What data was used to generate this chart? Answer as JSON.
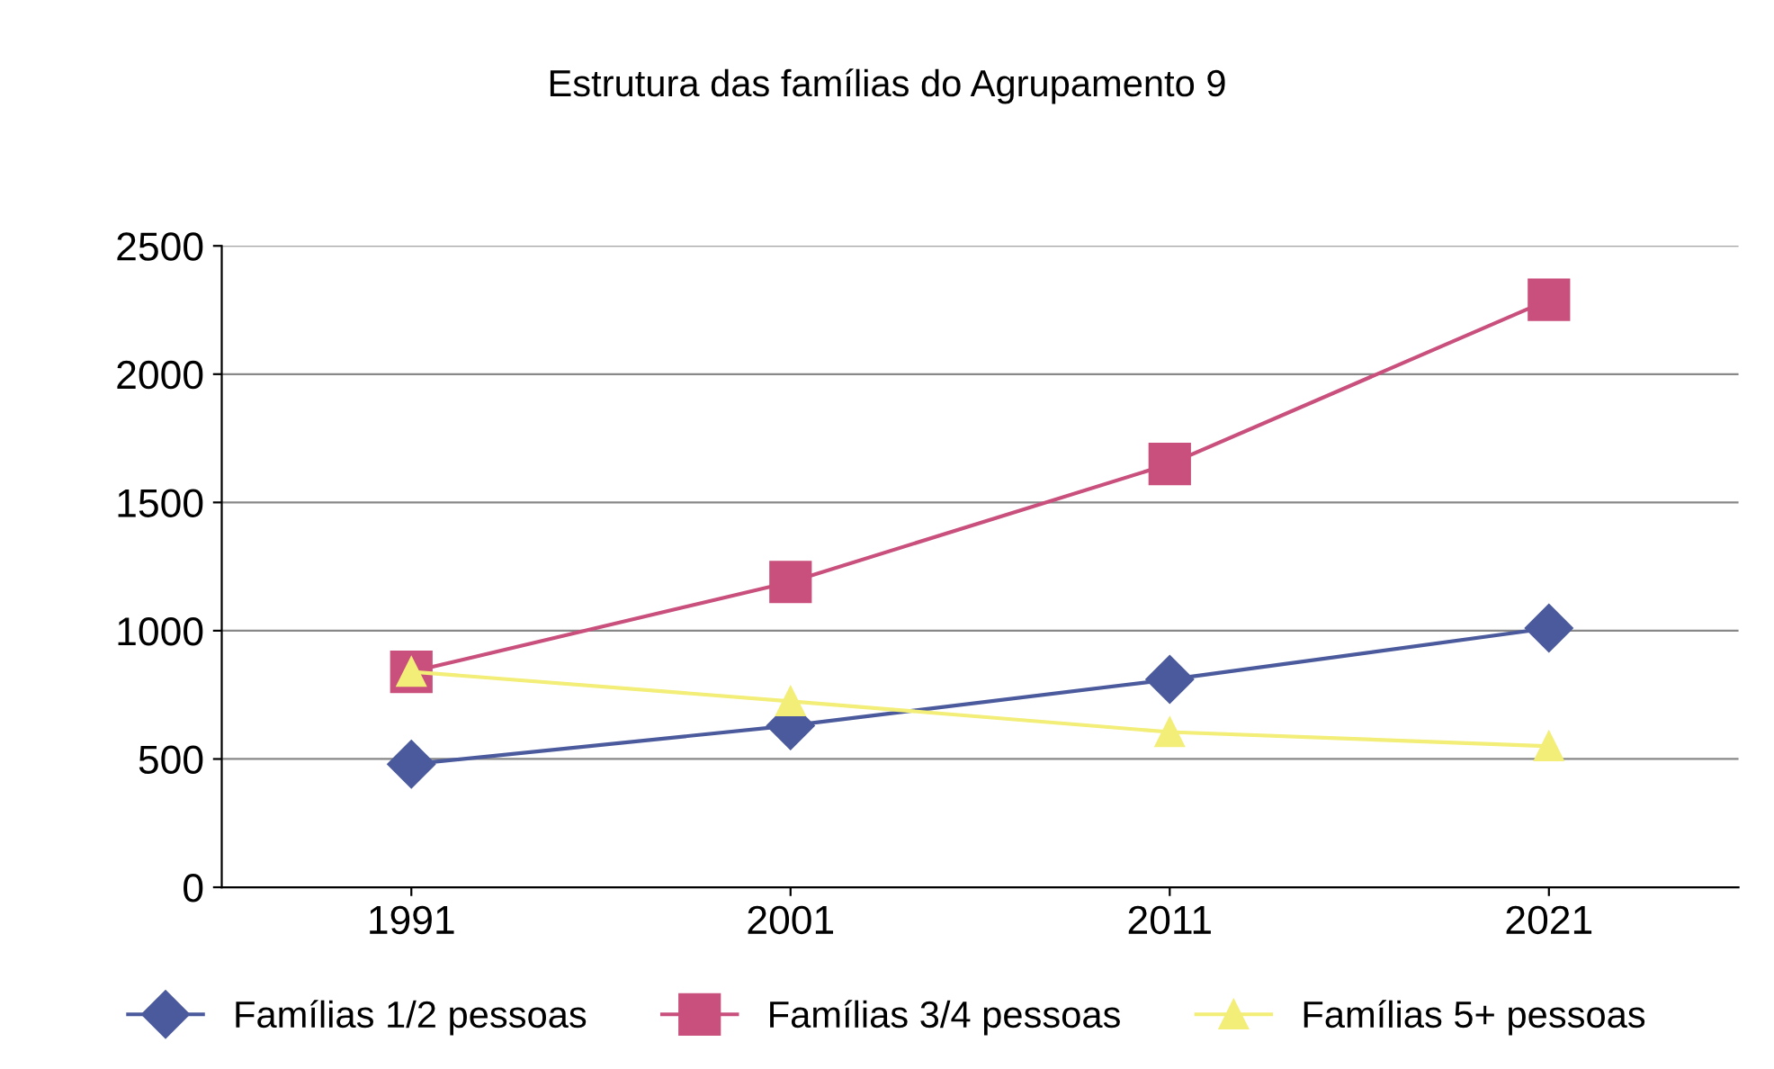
{
  "chart_data": {
    "type": "line",
    "title": "Estrutura das famílias do Agrupamento 9",
    "categories": [
      "1991",
      "2001",
      "2011",
      "2021"
    ],
    "series": [
      {
        "name": "Famílias 1/2 pessoas",
        "color": "#4b5a9c",
        "marker": "diamond",
        "values": [
          480,
          630,
          810,
          1010
        ]
      },
      {
        "name": "Famílias 3/4 pessoas",
        "color": "#c9507c",
        "marker": "square",
        "values": [
          840,
          1190,
          1650,
          2290
        ]
      },
      {
        "name": "Famílias 5+ pessoas",
        "color": "#f2ee78",
        "marker": "triangle",
        "values": [
          840,
          725,
          605,
          550
        ]
      }
    ],
    "ylim": [
      0,
      2500
    ],
    "yticks": [
      0,
      500,
      1000,
      1500,
      2000,
      2500
    ],
    "grid": "y",
    "legend": "bottom"
  }
}
